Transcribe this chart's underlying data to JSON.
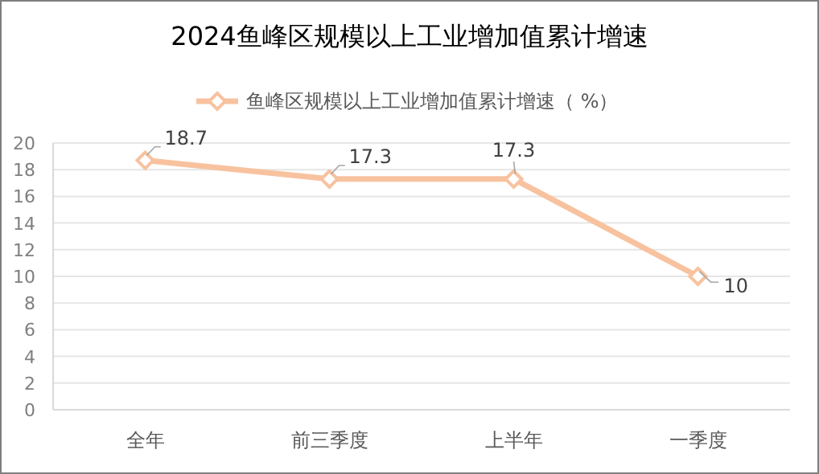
{
  "chart_data": {
    "type": "line",
    "title": "2024鱼峰区规模以上工业增加值累计增速",
    "categories": [
      "全年",
      "前三季度",
      "上半年",
      "一季度"
    ],
    "series": [
      {
        "name": "鱼峰区规模以上工业增加值累计增速（ %）",
        "color": "#f8c29f",
        "values": [
          18.7,
          17.3,
          17.3,
          10
        ]
      }
    ],
    "ylim": [
      0,
      20
    ],
    "yticks": [
      0,
      2,
      4,
      6,
      8,
      10,
      12,
      14,
      16,
      18,
      20
    ],
    "grid": "y",
    "legend": "top",
    "marker": "diamond",
    "line_style": "solid",
    "data_labels": true
  }
}
